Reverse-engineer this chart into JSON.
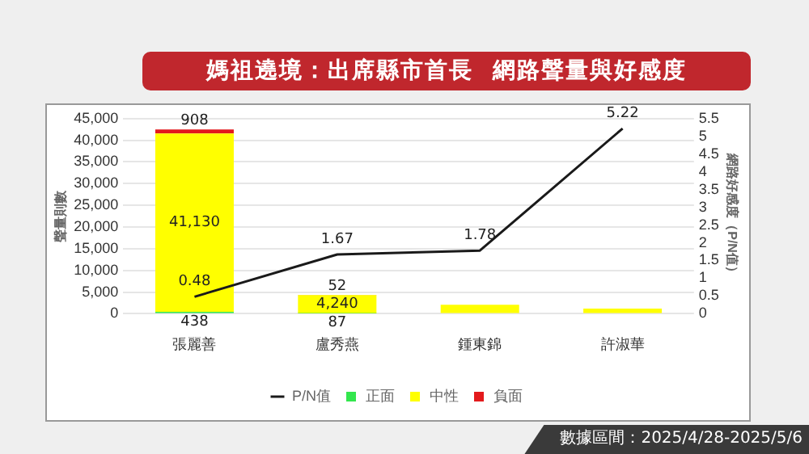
{
  "chart_data": {
    "type": "bar",
    "title": "媽祖遶境：出席縣市首長  網路聲量與好感度",
    "categories": [
      "張麗善",
      "盧秀燕",
      "鍾東錦",
      "許淑華"
    ],
    "stacked": true,
    "series": [
      {
        "name": "正面",
        "color": "#33e64d",
        "values": [
          438,
          87,
          null,
          null
        ],
        "value_labels": [
          "438",
          "87",
          null,
          null
        ]
      },
      {
        "name": "中性",
        "color": "#ffff00",
        "values": [
          41130,
          4240,
          2100,
          1200
        ],
        "value_labels": [
          "41,130",
          "4,240",
          null,
          null
        ]
      },
      {
        "name": "負面",
        "color": "#e31a1c",
        "values": [
          908,
          52,
          null,
          null
        ],
        "value_labels": [
          "908",
          "52",
          null,
          null
        ]
      },
      {
        "name": "P/N值",
        "type": "line",
        "axis": "y2",
        "color": "#1a1a1a",
        "values": [
          0.48,
          1.67,
          1.78,
          5.22
        ],
        "value_labels": [
          "0.48",
          "1.67",
          "1.78",
          "5.22"
        ]
      }
    ],
    "ylabel": "聲量則數",
    "y2label": "網路好感度（P/N值）",
    "ylim": [
      0,
      45000
    ],
    "yticks": [
      {
        "value": 0,
        "label": "0"
      },
      {
        "value": 5000,
        "label": "5,000"
      },
      {
        "value": 10000,
        "label": "10,000"
      },
      {
        "value": 15000,
        "label": "15,000"
      },
      {
        "value": 20000,
        "label": "20,000"
      },
      {
        "value": 25000,
        "label": "25,000"
      },
      {
        "value": 30000,
        "label": "30,000"
      },
      {
        "value": 35000,
        "label": "35,000"
      },
      {
        "value": 40000,
        "label": "40,000"
      },
      {
        "value": 45000,
        "label": "45,000"
      }
    ],
    "y2lim": [
      0,
      5.5
    ],
    "y2ticks": [
      0,
      0.5,
      1,
      1.5,
      2,
      2.5,
      3,
      3.5,
      4,
      4.5,
      5,
      5.5
    ],
    "grid": "y",
    "legend": "bottom",
    "marker": "none",
    "line_style": "solid",
    "annotations": [
      "數據區間：2025/4/28-2025/5/6"
    ]
  }
}
